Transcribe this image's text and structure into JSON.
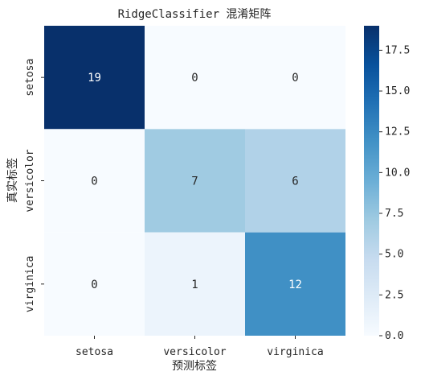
{
  "chart_data": {
    "type": "heatmap",
    "title": "RidgeClassifier 混淆矩阵",
    "xlabel": "预测标签",
    "ylabel": "真实标签",
    "x_categories": [
      "setosa",
      "versicolor",
      "virginica"
    ],
    "y_categories": [
      "setosa",
      "versicolor",
      "virginica"
    ],
    "values": [
      [
        19,
        0,
        0
      ],
      [
        0,
        7,
        6
      ],
      [
        0,
        1,
        12
      ]
    ],
    "colorbar": {
      "colormap": "Blues",
      "range": [
        0,
        19
      ],
      "ticks": [
        0.0,
        2.5,
        5.0,
        7.5,
        10.0,
        12.5,
        15.0,
        17.5
      ],
      "tick_labels": [
        "0.0",
        "2.5",
        "5.0",
        "7.5",
        "10.0",
        "12.5",
        "15.0",
        "17.5"
      ]
    },
    "annotation_colors": {
      "light": "#ffffff",
      "dark": "#262626"
    }
  }
}
